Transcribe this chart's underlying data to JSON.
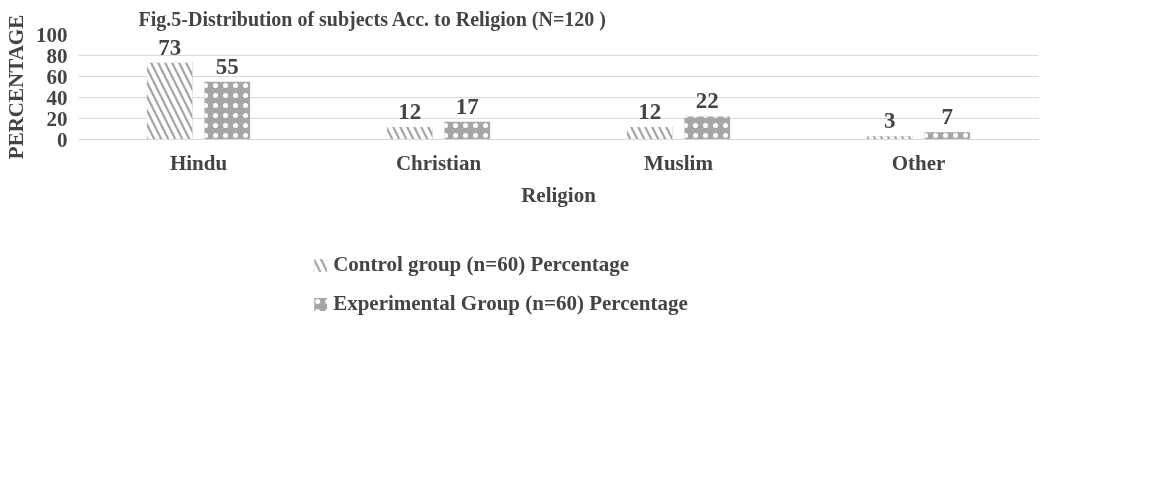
{
  "chart_data": {
    "type": "bar",
    "title": "Fig.5-Distribution of subjects Acc. to Religion (N=120 )",
    "xlabel": "Religion",
    "ylabel": "PERCENTAGE",
    "categories": [
      "Hindu",
      "Christian",
      "Muslim",
      "Other"
    ],
    "series": [
      {
        "name": "Control group (n=60) Percentage",
        "color": "#a6a6a6",
        "values": [
          73,
          12,
          12,
          3
        ]
      },
      {
        "name": "Experimental Group (n=60) Percentage",
        "color": "#a6a6a6",
        "values": [
          55,
          17,
          22,
          7
        ]
      }
    ],
    "ylim": [
      0,
      100
    ],
    "yticks": [
      0,
      20,
      40,
      60,
      80,
      100
    ],
    "grid": "y",
    "legend": "bottom",
    "data_labels": true
  }
}
